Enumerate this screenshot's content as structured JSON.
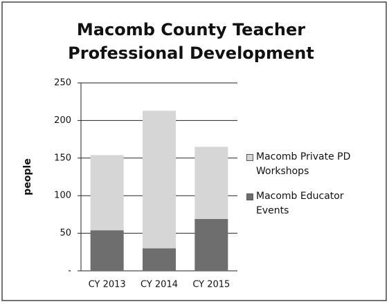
{
  "chart_data": {
    "type": "stacked_bar",
    "title": [
      "Macomb County Teacher",
      "Professional Development"
    ],
    "y_label": "people",
    "categories": [
      "CY 2013",
      "CY 2014",
      "CY 2015"
    ],
    "series": [
      {
        "name": "Macomb Educator Events",
        "color": "#6e6e6e",
        "values": [
          54,
          30,
          69
        ]
      },
      {
        "name": "Macomb Private PD Workshops",
        "color": "#d6d6d6",
        "values": [
          100,
          183,
          96
        ]
      }
    ],
    "ylim": [
      0,
      250
    ],
    "yticks": [
      {
        "value": 0,
        "label": "-"
      },
      50,
      100,
      150,
      200,
      250
    ],
    "grid": true,
    "legend": "right"
  }
}
